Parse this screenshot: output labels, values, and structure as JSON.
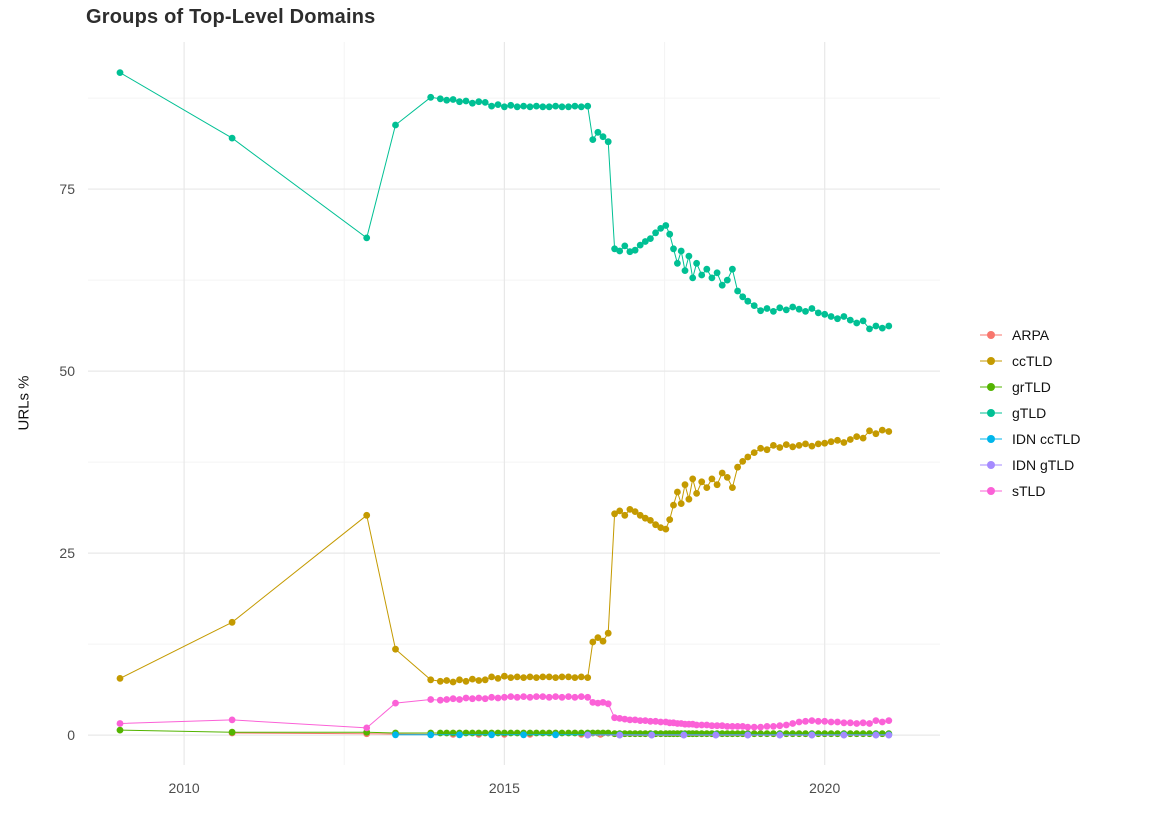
{
  "chart_data": {
    "type": "line",
    "title": "Groups of Top-Level Domains",
    "xlabel": "",
    "ylabel": "URLs %",
    "xlim": [
      2008.5,
      2021.8
    ],
    "ylim": [
      -4.1,
      95.2
    ],
    "x_ticks": [
      2010,
      2015,
      2020
    ],
    "y_ticks": [
      0,
      25,
      50,
      75
    ],
    "x_minor": [
      2012.5,
      2017.5
    ],
    "y_minor": [
      12.5,
      37.5,
      62.5,
      87.5
    ],
    "grid": true,
    "legend_position": "right",
    "x": [
      2009.0,
      2010.75,
      2012.85,
      2013.3,
      2013.85,
      2014.0,
      2014.1,
      2014.2,
      2014.3,
      2014.4,
      2014.5,
      2014.6,
      2014.7,
      2014.8,
      2014.9,
      2015.0,
      2015.1,
      2015.2,
      2015.3,
      2015.4,
      2015.5,
      2015.6,
      2015.7,
      2015.8,
      2015.9,
      2016.0,
      2016.1,
      2016.2,
      2016.3,
      2016.38,
      2016.46,
      2016.54,
      2016.62,
      2016.72,
      2016.8,
      2016.88,
      2016.96,
      2017.04,
      2017.12,
      2017.2,
      2017.28,
      2017.36,
      2017.44,
      2017.52,
      2017.58,
      2017.64,
      2017.7,
      2017.76,
      2017.82,
      2017.88,
      2017.94,
      2018.0,
      2018.08,
      2018.16,
      2018.24,
      2018.32,
      2018.4,
      2018.48,
      2018.56,
      2018.64,
      2018.72,
      2018.8,
      2018.9,
      2019.0,
      2019.1,
      2019.2,
      2019.3,
      2019.4,
      2019.5,
      2019.6,
      2019.7,
      2019.8,
      2019.9,
      2020.0,
      2020.1,
      2020.2,
      2020.3,
      2020.4,
      2020.5,
      2020.6,
      2020.7,
      2020.8,
      2020.9,
      2021.0
    ],
    "series": [
      {
        "name": "ARPA",
        "color": "#F8766D",
        "x": [
          2010.75,
          2012.85,
          2013.3,
          2013.85,
          2014.2,
          2014.6,
          2015.0,
          2015.4,
          2015.8,
          2016.2,
          2016.5
        ],
        "y": [
          0.3,
          0.2,
          0.15,
          0.1,
          0.1,
          0.1,
          0.1,
          0.1,
          0.1,
          0.1,
          0.1
        ]
      },
      {
        "name": "ccTLD",
        "color": "#C49A00",
        "y": [
          7.8,
          15.5,
          30.2,
          11.8,
          7.6,
          7.4,
          7.5,
          7.3,
          7.6,
          7.4,
          7.7,
          7.5,
          7.6,
          8.0,
          7.8,
          8.1,
          7.9,
          8.0,
          7.9,
          8.0,
          7.9,
          8.0,
          8.0,
          7.9,
          8.0,
          8.0,
          7.9,
          8.0,
          7.9,
          12.8,
          13.4,
          12.9,
          14.0,
          30.4,
          30.8,
          30.2,
          31.0,
          30.7,
          30.2,
          29.8,
          29.5,
          28.9,
          28.5,
          28.3,
          29.6,
          31.6,
          33.4,
          31.8,
          34.4,
          32.4,
          35.2,
          33.2,
          34.8,
          34.0,
          35.2,
          34.4,
          36.0,
          35.4,
          34.0,
          36.8,
          37.6,
          38.2,
          38.8,
          39.4,
          39.2,
          39.8,
          39.5,
          39.9,
          39.6,
          39.8,
          40.0,
          39.7,
          40.0,
          40.1,
          40.3,
          40.5,
          40.2,
          40.6,
          41.0,
          40.8,
          41.8,
          41.4,
          41.9,
          41.7
        ]
      },
      {
        "name": "grTLD",
        "color": "#53B400",
        "y": [
          0.7,
          0.4,
          0.4,
          0.3,
          0.3,
          0.3,
          0.3,
          0.3,
          0.3,
          0.3,
          0.3,
          0.3,
          0.3,
          0.3,
          0.3,
          0.3,
          0.3,
          0.3,
          0.3,
          0.3,
          0.3,
          0.3,
          0.3,
          0.3,
          0.3,
          0.3,
          0.3,
          0.3,
          0.3,
          0.3,
          0.3,
          0.3,
          0.3,
          0.2,
          0.2,
          0.2,
          0.2,
          0.2,
          0.2,
          0.2,
          0.2,
          0.2,
          0.2,
          0.2,
          0.2,
          0.2,
          0.2,
          0.2,
          0.2,
          0.2,
          0.2,
          0.2,
          0.2,
          0.2,
          0.2,
          0.2,
          0.2,
          0.2,
          0.2,
          0.2,
          0.2,
          0.2,
          0.2,
          0.2,
          0.2,
          0.2,
          0.2,
          0.2,
          0.2,
          0.2,
          0.2,
          0.2,
          0.2,
          0.2,
          0.2,
          0.2,
          0.2,
          0.2,
          0.2,
          0.2,
          0.2,
          0.2,
          0.2,
          0.2
        ]
      },
      {
        "name": "gTLD",
        "color": "#00C094",
        "y": [
          91.0,
          82.0,
          68.3,
          83.8,
          87.6,
          87.4,
          87.2,
          87.3,
          87.0,
          87.1,
          86.8,
          87.0,
          86.9,
          86.4,
          86.6,
          86.3,
          86.5,
          86.3,
          86.4,
          86.3,
          86.4,
          86.3,
          86.3,
          86.4,
          86.3,
          86.3,
          86.4,
          86.3,
          86.4,
          81.8,
          82.8,
          82.2,
          81.5,
          66.8,
          66.5,
          67.2,
          66.4,
          66.6,
          67.3,
          67.8,
          68.2,
          69.0,
          69.6,
          70.0,
          68.8,
          66.8,
          64.8,
          66.5,
          63.8,
          65.8,
          62.8,
          64.8,
          63.2,
          64.0,
          62.8,
          63.5,
          61.8,
          62.5,
          64.0,
          61.0,
          60.2,
          59.6,
          59.0,
          58.3,
          58.6,
          58.2,
          58.7,
          58.4,
          58.8,
          58.5,
          58.2,
          58.6,
          58.0,
          57.8,
          57.5,
          57.2,
          57.5,
          57.0,
          56.6,
          56.9,
          55.8,
          56.2,
          55.9,
          56.2
        ]
      },
      {
        "name": "IDN ccTLD",
        "color": "#00B6EB",
        "x": [
          2013.3,
          2013.85,
          2014.3,
          2014.8,
          2015.3,
          2015.8,
          2016.3,
          2016.8,
          2017.3,
          2017.8,
          2018.3,
          2018.8,
          2019.3,
          2019.8,
          2020.3,
          2020.8,
          2021.0
        ],
        "y": [
          0.05,
          0.05,
          0.05,
          0.05,
          0.05,
          0.05,
          0.05,
          0.05,
          0.05,
          0.05,
          0.05,
          0.05,
          0.05,
          0.05,
          0.05,
          0.05,
          0.05
        ]
      },
      {
        "name": "IDN gTLD",
        "color": "#A58AFF",
        "x": [
          2016.3,
          2016.8,
          2017.3,
          2017.8,
          2018.3,
          2018.8,
          2019.3,
          2019.8,
          2020.3,
          2020.8,
          2021.0
        ],
        "y": [
          0.0,
          0.0,
          0.0,
          0.0,
          0.0,
          0.0,
          0.0,
          0.0,
          0.0,
          0.0,
          0.0
        ]
      },
      {
        "name": "sTLD",
        "color": "#FB61D7",
        "y": [
          1.6,
          2.1,
          1.0,
          4.4,
          4.9,
          4.8,
          4.9,
          5.0,
          4.9,
          5.1,
          5.0,
          5.1,
          5.0,
          5.2,
          5.1,
          5.2,
          5.3,
          5.2,
          5.3,
          5.2,
          5.3,
          5.3,
          5.2,
          5.3,
          5.2,
          5.3,
          5.2,
          5.3,
          5.2,
          4.5,
          4.4,
          4.5,
          4.3,
          2.4,
          2.3,
          2.2,
          2.1,
          2.1,
          2.0,
          2.0,
          1.9,
          1.9,
          1.8,
          1.8,
          1.7,
          1.7,
          1.6,
          1.6,
          1.5,
          1.5,
          1.5,
          1.4,
          1.4,
          1.4,
          1.3,
          1.3,
          1.3,
          1.2,
          1.2,
          1.2,
          1.2,
          1.1,
          1.1,
          1.1,
          1.2,
          1.2,
          1.3,
          1.4,
          1.6,
          1.8,
          1.9,
          2.0,
          1.9,
          1.9,
          1.8,
          1.8,
          1.7,
          1.7,
          1.6,
          1.7,
          1.6,
          2.0,
          1.8,
          2.0
        ]
      }
    ]
  }
}
